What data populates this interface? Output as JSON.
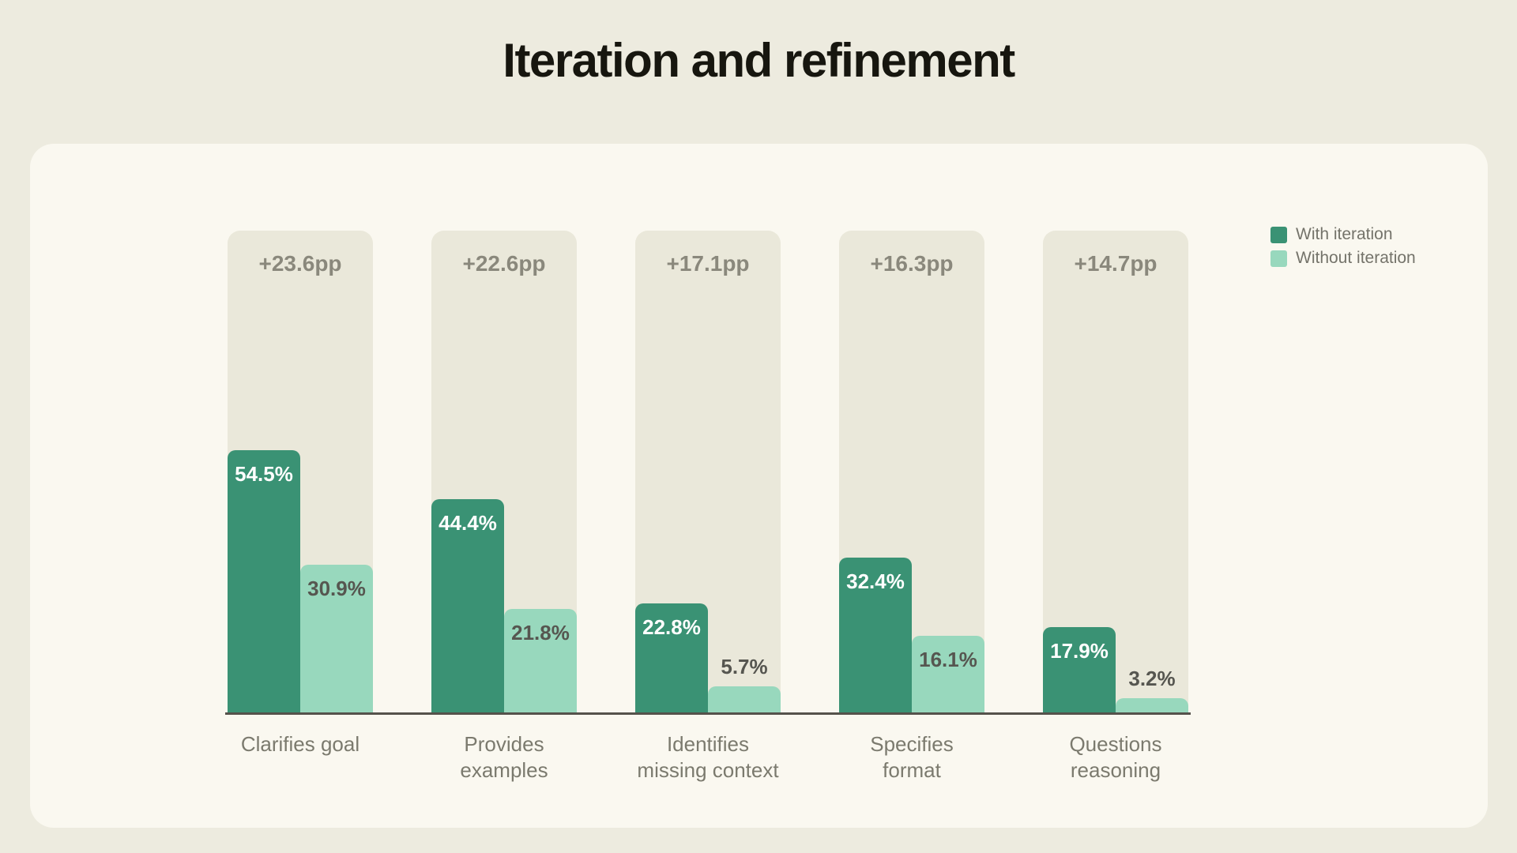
{
  "title": "Iteration and refinement",
  "chart_data": {
    "type": "bar",
    "title": "Iteration and refinement",
    "categories": [
      "Clarifies goal",
      "Provides\nexamples",
      "Identifies\nmissing context",
      "Specifies\nformat",
      "Questions\nreasoning"
    ],
    "series": [
      {
        "name": "With iteration",
        "color": "#3a9274",
        "values": [
          54.5,
          44.4,
          22.8,
          32.4,
          17.9
        ]
      },
      {
        "name": "Without iteration",
        "color": "#98d8bd",
        "values": [
          30.9,
          21.8,
          5.7,
          16.1,
          3.2
        ]
      }
    ],
    "delta_labels": [
      "+23.6pp",
      "+22.6pp",
      "+17.1pp",
      "+16.3pp",
      "+14.7pp"
    ],
    "value_suffix": "%",
    "xlabel": "",
    "ylabel": "",
    "ylim": [
      0,
      100
    ],
    "grid": false,
    "legend_position": "top-right"
  },
  "legend": {
    "items": [
      {
        "label": "With iteration",
        "color": "#3a9274"
      },
      {
        "label": "Without iteration",
        "color": "#98d8bd"
      }
    ]
  },
  "colors": {
    "page_bg": "#edebdf",
    "card_bg": "#faf8f0",
    "track_bg": "#eae8da",
    "axis_line": "#55524b",
    "title_text": "#17160f",
    "delta_text": "#8a887c",
    "category_text": "#7b7a6e",
    "legend_text": "#74736a",
    "label_on_dark": "#ffffff",
    "label_on_light": "#565650"
  }
}
